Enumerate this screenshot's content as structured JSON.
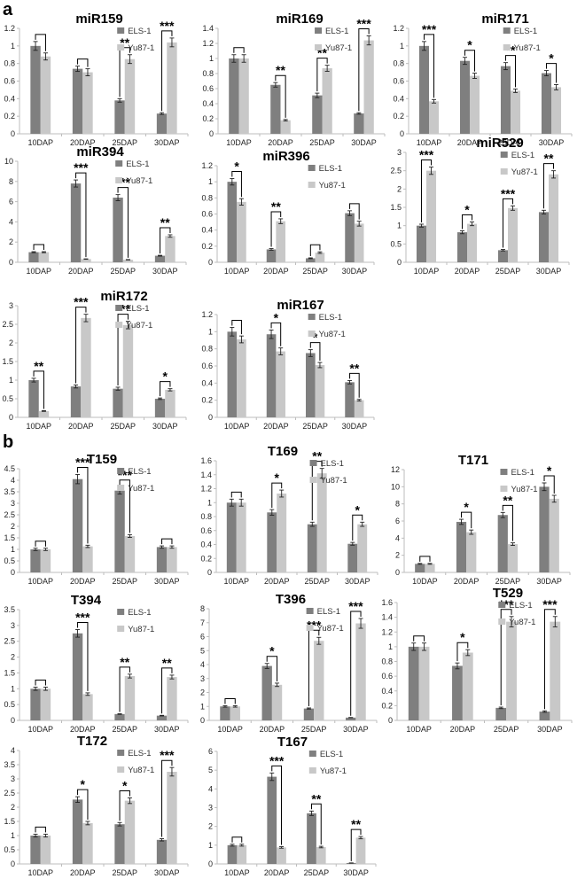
{
  "panel_labels": [
    "a",
    "b"
  ],
  "colors": {
    "ELS-1": "#7f7f7f",
    "Yu87-1": "#c8c8c8"
  },
  "chart_data": [
    {
      "id": "miR159",
      "type": "bar",
      "title": "miR159",
      "categories": [
        "10DAP",
        "20DAP",
        "25DAP",
        "30DAP"
      ],
      "ylim": [
        0,
        1.2
      ],
      "yticks": [
        "0",
        "0.2",
        "0.4",
        "0.6",
        "0.8",
        "1",
        "1.2"
      ],
      "series": [
        {
          "name": "ELS-1",
          "values": [
            1.0,
            0.74,
            0.38,
            0.23
          ],
          "errors": [
            0.05,
            0.03,
            0.02,
            0.01
          ]
        },
        {
          "name": "Yu87-1",
          "values": [
            0.88,
            0.7,
            0.85,
            1.04
          ],
          "errors": [
            0.04,
            0.04,
            0.05,
            0.05
          ]
        }
      ],
      "significance": [
        "",
        "",
        "**",
        "***"
      ],
      "legend": "top"
    },
    {
      "id": "miR169",
      "type": "bar",
      "title": "miR169",
      "categories": [
        "10DAP",
        "20DAP",
        "25DAP",
        "30DAP"
      ],
      "ylim": [
        0,
        1.4
      ],
      "yticks": [
        "0",
        "0.2",
        "0.4",
        "0.6",
        "0.8",
        "1",
        "1.2",
        "1.4"
      ],
      "series": [
        {
          "name": "ELS-1",
          "values": [
            1.0,
            0.65,
            0.51,
            0.27
          ],
          "errors": [
            0.05,
            0.03,
            0.03,
            0.01
          ]
        },
        {
          "name": "Yu87-1",
          "values": [
            1.0,
            0.18,
            0.87,
            1.24
          ],
          "errors": [
            0.05,
            0.01,
            0.04,
            0.06
          ]
        }
      ],
      "significance": [
        "",
        "**",
        "**",
        "***"
      ],
      "legend": "top"
    },
    {
      "id": "miR171",
      "type": "bar",
      "title": "miR171",
      "categories": [
        "10DAP",
        "20DAP",
        "25DAP",
        "30DAP"
      ],
      "ylim": [
        0,
        1.2
      ],
      "yticks": [
        "0",
        "0.2",
        "0.4",
        "0.6",
        "0.8",
        "1",
        "1.2"
      ],
      "series": [
        {
          "name": "ELS-1",
          "values": [
            1.0,
            0.83,
            0.77,
            0.69
          ],
          "errors": [
            0.05,
            0.04,
            0.04,
            0.03
          ]
        },
        {
          "name": "Yu87-1",
          "values": [
            0.37,
            0.66,
            0.49,
            0.53
          ],
          "errors": [
            0.02,
            0.03,
            0.02,
            0.03
          ]
        }
      ],
      "significance": [
        "***",
        "*",
        "**",
        "*"
      ],
      "legend": "top"
    },
    {
      "id": "miR394",
      "type": "bar",
      "title": "miR394",
      "categories": [
        "10DAP",
        "20DAP",
        "25DAP",
        "30DAP"
      ],
      "ylim": [
        0,
        10
      ],
      "yticks": [
        "0",
        "2",
        "4",
        "6",
        "8",
        "10"
      ],
      "series": [
        {
          "name": "ELS-1",
          "values": [
            1.0,
            7.8,
            6.4,
            0.65
          ],
          "errors": [
            0.05,
            0.35,
            0.3,
            0.04
          ]
        },
        {
          "name": "Yu87-1",
          "values": [
            1.0,
            0.32,
            0.25,
            2.6
          ],
          "errors": [
            0.05,
            0.02,
            0.02,
            0.12
          ]
        }
      ],
      "significance": [
        "",
        "***",
        "***",
        "**"
      ],
      "legend": "top"
    },
    {
      "id": "miR396",
      "type": "bar",
      "title": "miR396",
      "categories": [
        "10DAP",
        "20DAP",
        "25DAP",
        "30DAP"
      ],
      "ylim": [
        0,
        1.2
      ],
      "yticks": [
        "0",
        "0.2",
        "0.4",
        "0.6",
        "0.8",
        "1",
        "1.2"
      ],
      "series": [
        {
          "name": "ELS-1",
          "values": [
            1.0,
            0.16,
            0.05,
            0.61
          ],
          "errors": [
            0.04,
            0.01,
            0.005,
            0.03
          ]
        },
        {
          "name": "Yu87-1",
          "values": [
            0.75,
            0.51,
            0.12,
            0.48
          ],
          "errors": [
            0.04,
            0.03,
            0.01,
            0.03
          ]
        }
      ],
      "significance": [
        "*",
        "**",
        "",
        ""
      ],
      "legend": "top"
    },
    {
      "id": "miR529",
      "type": "bar",
      "title": "miR529",
      "categories": [
        "10DAP",
        "20DAP",
        "25DAP",
        "30DAP"
      ],
      "ylim": [
        0,
        3
      ],
      "yticks": [
        "0",
        "0.5",
        "1",
        "1.5",
        "2",
        "2.5",
        "3"
      ],
      "series": [
        {
          "name": "ELS-1",
          "values": [
            1.0,
            0.82,
            0.33,
            1.37
          ],
          "errors": [
            0.04,
            0.04,
            0.02,
            0.05
          ]
        },
        {
          "name": "Yu87-1",
          "values": [
            2.5,
            1.05,
            1.48,
            2.4
          ],
          "errors": [
            0.1,
            0.05,
            0.06,
            0.1
          ]
        }
      ],
      "significance": [
        "***",
        "*",
        "***",
        "**"
      ],
      "legend": "top"
    },
    {
      "id": "miR172",
      "type": "bar",
      "title": "miR172",
      "categories": [
        "10DAP",
        "20DAP",
        "25DAP",
        "30DAP"
      ],
      "ylim": [
        0,
        3
      ],
      "yticks": [
        "0",
        "0.5",
        "1",
        "1.5",
        "2",
        "2.5",
        "3"
      ],
      "series": [
        {
          "name": "ELS-1",
          "values": [
            1.0,
            0.83,
            0.77,
            0.5
          ],
          "errors": [
            0.05,
            0.04,
            0.04,
            0.02
          ]
        },
        {
          "name": "Yu87-1",
          "values": [
            0.17,
            2.67,
            2.48,
            0.74
          ],
          "errors": [
            0.01,
            0.1,
            0.1,
            0.03
          ]
        }
      ],
      "significance": [
        "**",
        "***",
        "***",
        "*"
      ],
      "legend": "top"
    },
    {
      "id": "miR167",
      "type": "bar",
      "title": "miR167",
      "categories": [
        "10DAP",
        "20DAP",
        "25DAP",
        "30DAP"
      ],
      "ylim": [
        0,
        1.2
      ],
      "yticks": [
        "0",
        "0.2",
        "0.4",
        "0.6",
        "0.8",
        "1",
        "1.2"
      ],
      "series": [
        {
          "name": "ELS-1",
          "values": [
            1.0,
            0.97,
            0.75,
            0.41
          ],
          "errors": [
            0.05,
            0.05,
            0.04,
            0.02
          ]
        },
        {
          "name": "Yu87-1",
          "values": [
            0.91,
            0.77,
            0.61,
            0.2
          ],
          "errors": [
            0.04,
            0.04,
            0.03,
            0.01
          ]
        }
      ],
      "significance": [
        "",
        "*",
        "*",
        "**"
      ],
      "legend": "top"
    },
    {
      "id": "T159",
      "type": "bar",
      "title": "T159",
      "categories": [
        "10DAP",
        "20DAP",
        "25DAP",
        "30DAP"
      ],
      "ylim": [
        0,
        4.5
      ],
      "yticks": [
        "0",
        "0.5",
        "1",
        "1.5",
        "2",
        "2.5",
        "3",
        "3.5",
        "4",
        "4.5"
      ],
      "series": [
        {
          "name": "ELS-1",
          "values": [
            1.0,
            4.05,
            3.55,
            1.1
          ],
          "errors": [
            0.05,
            0.2,
            0.15,
            0.05
          ]
        },
        {
          "name": "Yu87-1",
          "values": [
            1.0,
            1.13,
            1.58,
            1.1
          ],
          "errors": [
            0.05,
            0.05,
            0.06,
            0.05
          ]
        }
      ],
      "significance": [
        "",
        "***",
        "***",
        ""
      ],
      "legend": "top"
    },
    {
      "id": "T169",
      "type": "bar",
      "title": "T169",
      "categories": [
        "10DAP",
        "20DAP",
        "25DAP",
        "30DAP"
      ],
      "ylim": [
        0,
        1.6
      ],
      "yticks": [
        "0",
        "0.2",
        "0.4",
        "0.6",
        "0.8",
        "1",
        "1.2",
        "1.4",
        "1.6"
      ],
      "series": [
        {
          "name": "ELS-1",
          "values": [
            1.0,
            0.86,
            0.69,
            0.41
          ],
          "errors": [
            0.05,
            0.04,
            0.03,
            0.02
          ]
        },
        {
          "name": "Yu87-1",
          "values": [
            1.0,
            1.13,
            1.42,
            0.69
          ],
          "errors": [
            0.05,
            0.05,
            0.07,
            0.03
          ]
        }
      ],
      "significance": [
        "",
        "*",
        "**",
        "*"
      ],
      "legend": "top"
    },
    {
      "id": "T171",
      "type": "bar",
      "title": "T171",
      "categories": [
        "10DAP",
        "20DAP",
        "25DAP",
        "30DAP"
      ],
      "ylim": [
        0,
        12
      ],
      "yticks": [
        "0",
        "2",
        "4",
        "6",
        "8",
        "10",
        "12"
      ],
      "series": [
        {
          "name": "ELS-1",
          "values": [
            1.0,
            5.9,
            6.7,
            10.0
          ],
          "errors": [
            0.05,
            0.3,
            0.3,
            0.45
          ]
        },
        {
          "name": "Yu87-1",
          "values": [
            1.0,
            4.7,
            3.3,
            8.6
          ],
          "errors": [
            0.05,
            0.25,
            0.15,
            0.4
          ]
        }
      ],
      "significance": [
        "",
        "*",
        "**",
        "*"
      ],
      "legend": "top"
    },
    {
      "id": "T394",
      "type": "bar",
      "title": "T394",
      "categories": [
        "10DAP",
        "20DAP",
        "25DAP",
        "30DAP"
      ],
      "ylim": [
        0,
        3.5
      ],
      "yticks": [
        "0",
        "0.5",
        "1",
        "1.5",
        "2",
        "2.5",
        "3",
        "3.5"
      ],
      "series": [
        {
          "name": "ELS-1",
          "values": [
            1.0,
            2.75,
            0.2,
            0.15
          ],
          "errors": [
            0.05,
            0.12,
            0.01,
            0.01
          ]
        },
        {
          "name": "Yu87-1",
          "values": [
            1.0,
            0.83,
            1.4,
            1.37
          ],
          "errors": [
            0.05,
            0.04,
            0.06,
            0.06
          ]
        }
      ],
      "significance": [
        "",
        "***",
        "**",
        "**"
      ],
      "legend": "top"
    },
    {
      "id": "T396",
      "type": "bar",
      "title": "T396",
      "categories": [
        "10DAP",
        "20DAP",
        "25DAP",
        "30DAP"
      ],
      "ylim": [
        0,
        8
      ],
      "yticks": [
        "0",
        "1",
        "2",
        "3",
        "4",
        "5",
        "6",
        "7",
        "8"
      ],
      "series": [
        {
          "name": "ELS-1",
          "values": [
            1.0,
            3.9,
            0.85,
            0.2
          ],
          "errors": [
            0.05,
            0.18,
            0.04,
            0.01
          ]
        },
        {
          "name": "Yu87-1",
          "values": [
            1.0,
            2.55,
            5.7,
            6.95
          ],
          "errors": [
            0.05,
            0.12,
            0.25,
            0.35
          ]
        }
      ],
      "significance": [
        "",
        "*",
        "***",
        "***"
      ],
      "legend": "top"
    },
    {
      "id": "T529",
      "type": "bar",
      "title": "T529",
      "categories": [
        "10DAP",
        "20DAP",
        "25DAP",
        "30DAP"
      ],
      "ylim": [
        0,
        1.6
      ],
      "yticks": [
        "0",
        "0.2",
        "0.4",
        "0.6",
        "0.8",
        "1",
        "1.2",
        "1.4",
        "1.6"
      ],
      "series": [
        {
          "name": "ELS-1",
          "values": [
            1.0,
            0.74,
            0.17,
            0.12
          ],
          "errors": [
            0.05,
            0.04,
            0.01,
            0.01
          ]
        },
        {
          "name": "Yu87-1",
          "values": [
            1.0,
            0.92,
            1.34,
            1.34
          ],
          "errors": [
            0.05,
            0.04,
            0.07,
            0.07
          ]
        }
      ],
      "significance": [
        "",
        "*",
        "***",
        "***"
      ],
      "legend": "top"
    },
    {
      "id": "T172",
      "type": "bar",
      "title": "T172",
      "categories": [
        "10DAP",
        "20DAP",
        "25DAP",
        "30DAP"
      ],
      "ylim": [
        0,
        4
      ],
      "yticks": [
        "0",
        "0.5",
        "1",
        "1.5",
        "2",
        "2.5",
        "3",
        "3.5",
        "4"
      ],
      "series": [
        {
          "name": "ELS-1",
          "values": [
            1.0,
            2.27,
            1.4,
            0.85
          ],
          "errors": [
            0.05,
            0.1,
            0.06,
            0.04
          ]
        },
        {
          "name": "Yu87-1",
          "values": [
            1.0,
            1.44,
            2.23,
            3.25
          ],
          "errors": [
            0.05,
            0.06,
            0.1,
            0.15
          ]
        }
      ],
      "significance": [
        "",
        "*",
        "*",
        "***"
      ],
      "legend": "top"
    },
    {
      "id": "T167",
      "type": "bar",
      "title": "T167",
      "categories": [
        "10DAP",
        "20DAP",
        "25DAP",
        "30DAP"
      ],
      "ylim": [
        0,
        6
      ],
      "yticks": [
        "0",
        "1",
        "2",
        "3",
        "4",
        "5",
        "6"
      ],
      "series": [
        {
          "name": "ELS-1",
          "values": [
            1.0,
            4.65,
            2.7,
            0.05
          ],
          "errors": [
            0.05,
            0.2,
            0.12,
            0.005
          ]
        },
        {
          "name": "Yu87-1",
          "values": [
            1.0,
            0.88,
            0.9,
            1.4
          ],
          "errors": [
            0.05,
            0.04,
            0.04,
            0.06
          ]
        }
      ],
      "significance": [
        "",
        "***",
        "**",
        "**"
      ],
      "legend": "top"
    }
  ]
}
